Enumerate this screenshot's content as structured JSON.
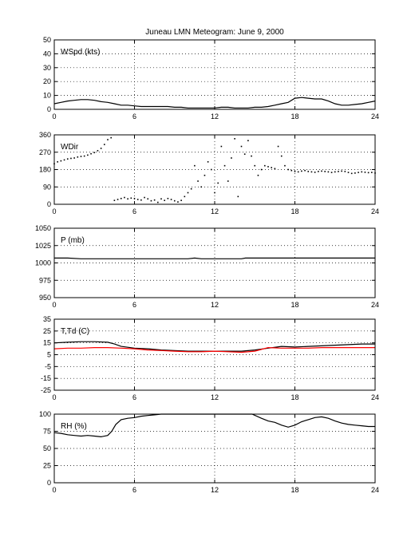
{
  "figure": {
    "title": "Juneau LMN Meteogram:      June  9, 2000",
    "x_ticks": [
      0,
      6,
      12,
      18,
      24
    ],
    "x_range": [
      0,
      24
    ]
  },
  "chart_data": [
    {
      "type": "line",
      "label": "WSpd (kts)",
      "ylim": [
        0,
        50
      ],
      "yticks": [
        0,
        10,
        20,
        30,
        40,
        50
      ],
      "xlim": [
        0,
        24
      ],
      "grid": true,
      "series": [
        {
          "color": "#000000",
          "marker": "line",
          "x": [
            0,
            0.5,
            1,
            1.5,
            2,
            2.5,
            3,
            3.5,
            4,
            4.5,
            5,
            5.5,
            6,
            6.5,
            7,
            7.5,
            8,
            8.5,
            9,
            9.5,
            10,
            10.5,
            11,
            11.5,
            12,
            12.5,
            13,
            13.5,
            14,
            14.5,
            15,
            15.5,
            16,
            16.5,
            17,
            17.5,
            18,
            18.5,
            19,
            19.5,
            20,
            20.5,
            21,
            21.5,
            22,
            22.5,
            23,
            23.5,
            24
          ],
          "y": [
            4,
            5,
            6,
            6.5,
            7,
            7,
            6.5,
            5.5,
            5,
            4,
            3,
            3,
            2.5,
            2,
            2,
            2,
            2,
            2,
            1.5,
            1.5,
            1,
            1,
            1,
            1,
            1,
            1.5,
            1.5,
            1,
            1,
            1,
            1.5,
            1.5,
            2,
            3,
            4,
            5,
            8,
            8.5,
            8,
            7.5,
            7.5,
            6,
            4,
            3,
            3,
            3.5,
            4,
            5,
            6
          ]
        }
      ]
    },
    {
      "type": "scatter",
      "label": "WDir",
      "ylim": [
        0,
        360
      ],
      "yticks": [
        0,
        90,
        180,
        270,
        360
      ],
      "xlim": [
        0,
        24
      ],
      "grid": true,
      "series": [
        {
          "color": "#000000",
          "marker": "dot",
          "x": [
            0,
            0.25,
            0.5,
            0.75,
            1,
            1.25,
            1.5,
            1.75,
            2,
            2.25,
            2.5,
            2.75,
            3,
            3.25,
            3.5,
            3.75,
            4,
            4.25,
            4.5,
            4.75,
            5,
            5.25,
            5.5,
            5.75,
            6,
            6.25,
            6.5,
            6.75,
            7,
            7.25,
            7.5,
            7.75,
            8,
            8.25,
            8.5,
            8.75,
            9,
            9.25,
            9.5,
            9.75,
            10,
            10.25,
            10.5,
            10.75,
            11,
            11.25,
            11.5,
            11.75,
            12,
            12.25,
            12.5,
            12.75,
            13,
            13.25,
            13.5,
            13.75,
            14,
            14.25,
            14.5,
            14.75,
            15,
            15.25,
            15.5,
            15.75,
            16,
            16.25,
            16.5,
            16.75,
            17,
            17.25,
            17.5,
            17.75,
            18,
            18.25,
            18.5,
            18.75,
            19,
            19.25,
            19.5,
            19.75,
            20,
            20.25,
            20.5,
            20.75,
            21,
            21.25,
            21.5,
            21.75,
            22,
            22.25,
            22.5,
            22.75,
            23,
            23.25,
            23.5,
            23.75,
            24
          ],
          "y": [
            210,
            220,
            225,
            230,
            235,
            238,
            240,
            245,
            248,
            250,
            255,
            262,
            268,
            278,
            290,
            310,
            335,
            345,
            20,
            25,
            30,
            35,
            28,
            32,
            30,
            25,
            22,
            35,
            28,
            18,
            22,
            10,
            28,
            20,
            30,
            25,
            18,
            12,
            20,
            40,
            60,
            80,
            200,
            120,
            90,
            150,
            220,
            180,
            60,
            110,
            300,
            200,
            120,
            240,
            340,
            40,
            300,
            260,
            330,
            250,
            200,
            150,
            180,
            200,
            195,
            190,
            185,
            300,
            250,
            200,
            180,
            175,
            170,
            168,
            172,
            175,
            170,
            168,
            166,
            170,
            172,
            170,
            168,
            165,
            168,
            170,
            172,
            170,
            165,
            160,
            162,
            165,
            168,
            166,
            164,
            165,
            162
          ]
        }
      ]
    },
    {
      "type": "line",
      "label": "P (mb)",
      "ylim": [
        950,
        1050
      ],
      "yticks": [
        950,
        975,
        1000,
        1025,
        1050
      ],
      "xlim": [
        0,
        24
      ],
      "grid": true,
      "series": [
        {
          "color": "#000000",
          "marker": "line",
          "x": [
            0,
            1,
            2,
            3,
            4,
            5,
            6,
            7,
            8,
            9,
            10,
            10.5,
            11,
            12,
            13,
            14,
            14.3,
            15,
            16,
            17,
            18,
            19,
            20,
            21,
            22,
            23,
            24
          ],
          "y": [
            1007,
            1007,
            1006,
            1006,
            1006,
            1006,
            1006,
            1006,
            1006,
            1006,
            1006,
            1007,
            1006,
            1006,
            1006,
            1006,
            1007,
            1007,
            1007,
            1007,
            1007,
            1007,
            1007,
            1007,
            1007,
            1007,
            1007
          ]
        }
      ]
    },
    {
      "type": "line",
      "label": "T,Td (C)",
      "ylim": [
        -25,
        35
      ],
      "yticks": [
        -25,
        -15,
        -5,
        5,
        15,
        25,
        35
      ],
      "xlim": [
        0,
        24
      ],
      "grid": true,
      "series": [
        {
          "color": "#000000",
          "marker": "line",
          "x": [
            0,
            1,
            2,
            3,
            4,
            4.5,
            5,
            6,
            7,
            8,
            9,
            10,
            11,
            12,
            13,
            14,
            15,
            16,
            17,
            18,
            19,
            20,
            21,
            22,
            23,
            24
          ],
          "y": [
            15,
            15.5,
            16,
            16,
            15.5,
            14,
            12,
            10.5,
            10,
            9,
            8.5,
            8,
            8,
            8,
            8,
            8,
            9,
            10.5,
            12,
            11.5,
            12,
            12.5,
            13,
            13.5,
            14,
            14
          ]
        },
        {
          "color": "#ff0000",
          "marker": "line",
          "x": [
            0,
            1,
            2,
            3,
            4,
            5,
            6,
            7,
            8,
            9,
            10,
            11,
            12,
            13,
            14,
            15,
            16,
            17,
            18,
            19,
            20,
            21,
            22,
            23,
            24
          ],
          "y": [
            10,
            10.5,
            10.5,
            11,
            11,
            10.5,
            10,
            9,
            8.5,
            8,
            7.5,
            7.5,
            8,
            7.5,
            7,
            8,
            11,
            10.5,
            10.5,
            10.5,
            11,
            11,
            11,
            11,
            11
          ]
        }
      ]
    },
    {
      "type": "line",
      "label": "RH (%)",
      "ylim": [
        0,
        100
      ],
      "yticks": [
        0,
        25,
        50,
        75,
        100
      ],
      "xlim": [
        0,
        24
      ],
      "grid": true,
      "series": [
        {
          "color": "#000000",
          "marker": "line",
          "x": [
            0,
            0.5,
            1,
            1.5,
            2,
            2.5,
            3,
            3.5,
            4,
            4.3,
            4.6,
            5,
            5.5,
            6,
            6.5,
            7,
            7.5,
            8,
            8.5,
            9,
            14.8,
            15.5,
            16,
            16.5,
            17,
            17.5,
            18,
            18.5,
            19,
            19.5,
            20,
            20.5,
            21,
            21.5,
            22,
            22.5,
            23,
            23.5,
            24
          ],
          "y": [
            73,
            72,
            70,
            69,
            68,
            69,
            68,
            67,
            69,
            75,
            85,
            92,
            94,
            95,
            97,
            98,
            99,
            100,
            100,
            100,
            100,
            94,
            90,
            88,
            84,
            81,
            84,
            89,
            92,
            95,
            96,
            94,
            90,
            87,
            85,
            84,
            83,
            82,
            82
          ]
        }
      ]
    }
  ]
}
